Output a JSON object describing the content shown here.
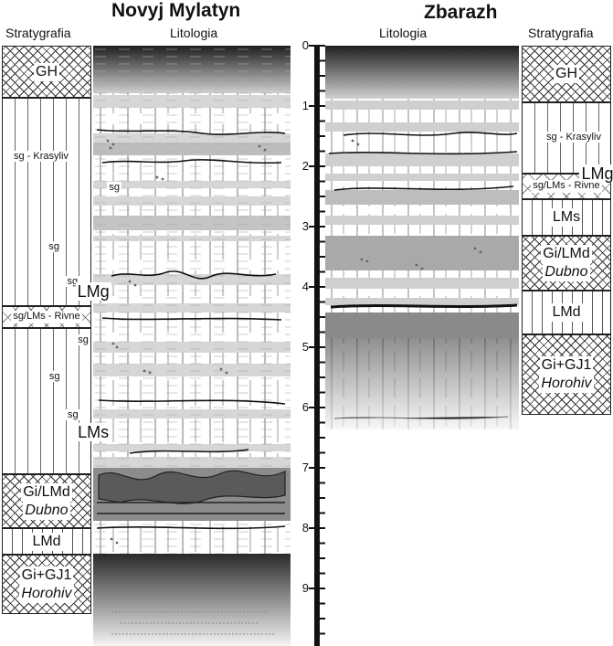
{
  "left_site": {
    "title": "Novyj Mylatyn",
    "strat_header": "Stratygrafia",
    "litho_header": "Litologia",
    "strat_units": [
      {
        "label": "GH"
      },
      {
        "label": "sg - Krasyliv",
        "label_small": true
      },
      {
        "label": "sg",
        "label_small": true
      },
      {
        "label": "sg",
        "label_small": true
      },
      {
        "label": "sg",
        "label_small": true
      },
      {
        "label": "LMg"
      },
      {
        "label": "sg",
        "label_small": true
      },
      {
        "label": "sg/LMs - Rivne",
        "label_small": true
      },
      {
        "label": "sg",
        "label_small": true
      },
      {
        "label": "sg",
        "label_small": true
      },
      {
        "label": "LMs"
      },
      {
        "label": "Gi/LMd",
        "sub": "Dubno"
      },
      {
        "label": "LMd"
      },
      {
        "label": "Gi+GJ1",
        "sub": "Horohiv"
      }
    ]
  },
  "right_site": {
    "title": "Zbarazh",
    "strat_header": "Stratygrafia",
    "litho_header": "Litologia",
    "strat_units": [
      {
        "label": "GH"
      },
      {
        "label": "sg - Krasyliv",
        "label_small": true
      },
      {
        "label": "LMg"
      },
      {
        "label": "sg/LMs - Rivne",
        "label_small": true
      },
      {
        "label": "LMs"
      },
      {
        "label": "Gi/LMd",
        "sub": "Dubno"
      },
      {
        "label": "LMd"
      },
      {
        "label": "Gi+GJ1",
        "sub": "Horohiv"
      }
    ]
  },
  "depth_scale": {
    "tick_labels": [
      "0",
      "1",
      "2",
      "3",
      "4",
      "5",
      "6",
      "7",
      "8",
      "9"
    ]
  },
  "colors": {
    "dark_top": "#3a3a3a",
    "light_gray": "#cfcfcf",
    "mid_gray": "#9a9a9a",
    "dark_lens": "#555555"
  }
}
